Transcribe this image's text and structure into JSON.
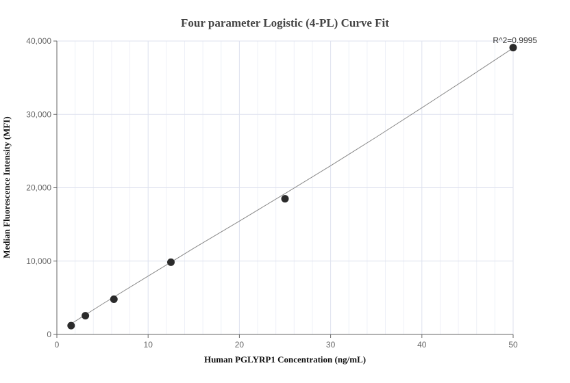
{
  "chart_data": {
    "type": "scatter",
    "title": "Four parameter Logistic (4-PL) Curve Fit",
    "xlabel": "Human PGLYRP1 Concentration (ng/mL)",
    "ylabel": "Median Fluorescence Intensity (MFI)",
    "xlim": [
      0,
      50
    ],
    "ylim": [
      0,
      40000
    ],
    "xticks": [
      "0",
      "10",
      "20",
      "30",
      "40",
      "50"
    ],
    "yticks": [
      "0",
      "10,000",
      "20,000",
      "30,000",
      "40,000"
    ],
    "grid": true,
    "annotation": "R^2=0.9995",
    "points": {
      "x": [
        1.5625,
        3.125,
        6.25,
        12.5,
        25,
        50
      ],
      "y": [
        1200,
        2550,
        4800,
        9850,
        18500,
        39100
      ]
    },
    "fit_curve": {
      "x": [
        1.5625,
        5,
        10,
        15,
        20,
        25,
        30,
        35,
        40,
        45,
        50
      ],
      "y": [
        1450,
        4150,
        7950,
        11750,
        15450,
        19200,
        23000,
        26900,
        30900,
        34950,
        39050
      ]
    },
    "colors": {
      "point": "#2b2b2b",
      "line": "#888888",
      "grid": "#e3e6f0"
    }
  }
}
